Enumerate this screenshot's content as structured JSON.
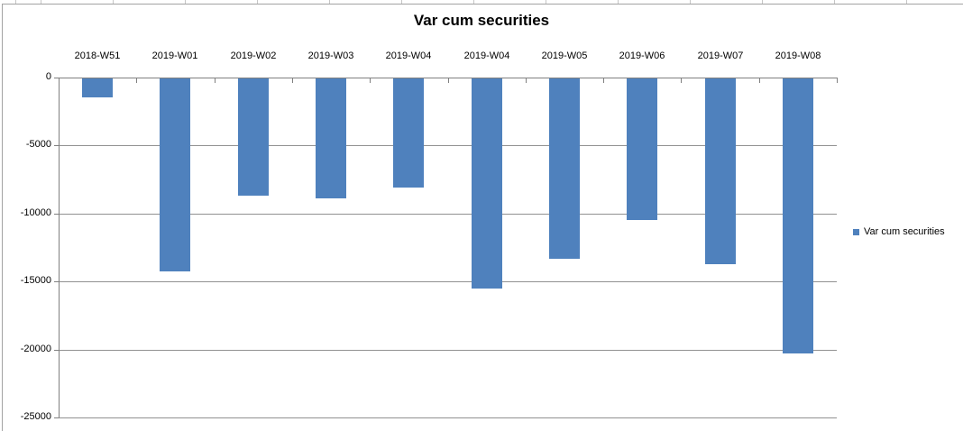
{
  "chart_data": {
    "type": "bar",
    "title": "Var cum securities",
    "categories": [
      "2018-W51",
      "2019-W01",
      "2019-W02",
      "2019-W03",
      "2019-W04",
      "2019-W04",
      "2019-W05",
      "2019-W06",
      "2019-W07",
      "2019-W08"
    ],
    "series": [
      {
        "name": "Var cum securities",
        "values": [
          -1450,
          -14250,
          -8700,
          -8900,
          -8100,
          -15500,
          -13300,
          -10450,
          -13700,
          -20300
        ]
      }
    ],
    "ylim": [
      -25000,
      0
    ],
    "yticks": [
      0,
      -5000,
      -10000,
      -15000,
      -20000,
      -25000
    ],
    "ytick_labels": [
      "0",
      "-5000",
      "-10000",
      "-15000",
      "-20000",
      "-25000"
    ],
    "xlabel": "",
    "ylabel": "",
    "grid": true,
    "legend_position": "right"
  },
  "legend": {
    "label": "Var cum securities"
  },
  "colors": {
    "bar": "#4F81BD",
    "axis": "#808080",
    "gridline": "#919191",
    "chart_border": "#A3A3A3",
    "spreadsheet_gridline": "#C6C6C6",
    "text": "#000000"
  }
}
